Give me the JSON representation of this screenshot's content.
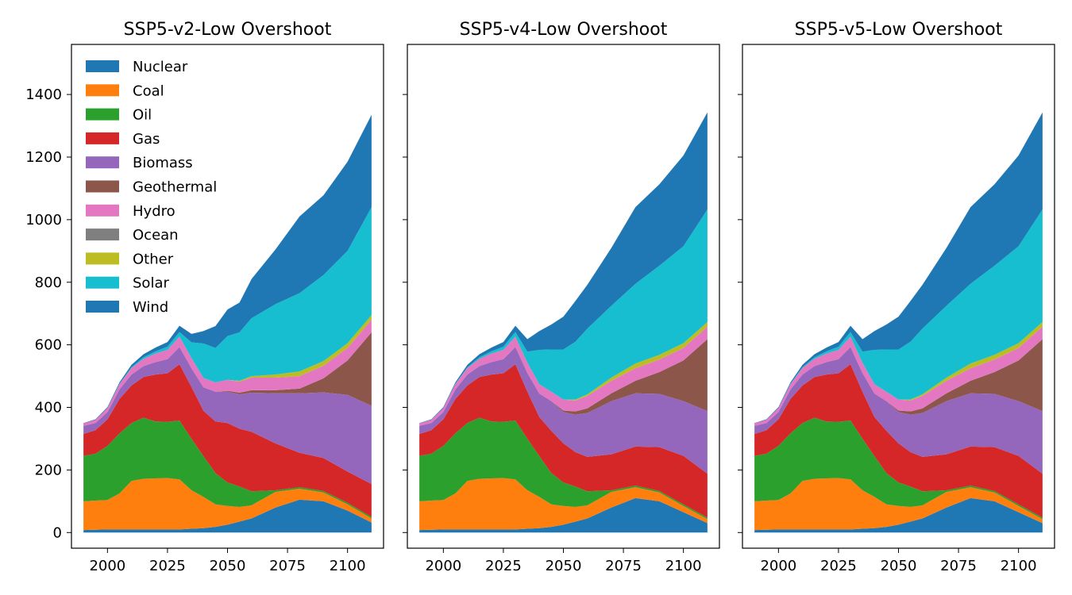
{
  "chart_data": {
    "type": "area",
    "stacked": true,
    "x": [
      1990,
      1995,
      2000,
      2005,
      2010,
      2015,
      2020,
      2025,
      2030,
      2035,
      2040,
      2045,
      2050,
      2055,
      2060,
      2070,
      2080,
      2090,
      2100,
      2110
    ],
    "ylim": [
      -50,
      1560
    ],
    "xlim": [
      1985,
      2115
    ],
    "yticks": [
      0,
      200,
      400,
      600,
      800,
      1000,
      1200,
      1400
    ],
    "xticks": [
      2000,
      2025,
      2050,
      2075,
      2100
    ],
    "legend": {
      "location": "upper-left",
      "panel": 0
    },
    "series_colors": {
      "Nuclear": "#1f77b4",
      "Coal": "#ff7f0e",
      "Oil": "#2ca02c",
      "Gas": "#d62728",
      "Biomass": "#9467bd",
      "Geothermal": "#8c564b",
      "Hydro": "#e377c2",
      "Ocean": "#7f7f7f",
      "Other": "#bcbd22",
      "Solar": "#17becf",
      "Wind": "#1f77b4"
    },
    "panels": [
      {
        "title": "SSP5-v2-Low Overshoot",
        "series": [
          {
            "name": "Nuclear",
            "values": [
              8,
              9,
              10,
              10,
              10,
              10,
              10,
              10,
              10,
              12,
              14,
              18,
              25,
              35,
              45,
              80,
              105,
              100,
              70,
              32
            ]
          },
          {
            "name": "Coal",
            "values": [
              92,
              93,
              94,
              115,
              155,
              162,
              163,
              164,
              160,
              123,
              100,
              72,
              60,
              47,
              42,
              50,
              35,
              28,
              20,
              13
            ]
          },
          {
            "name": "Oil",
            "values": [
              145,
              150,
              173,
              192,
              185,
              195,
              182,
              180,
              188,
              165,
              130,
              100,
              75,
              65,
              45,
              5,
              5,
              5,
              5,
              5
            ]
          },
          {
            "name": "Gas",
            "values": [
              70,
              75,
              85,
              110,
              120,
              130,
              150,
              155,
              180,
              165,
              145,
              165,
              190,
              185,
              190,
              150,
              110,
              105,
              100,
              105
            ]
          },
          {
            "name": "Biomass",
            "values": [
              26,
              23,
              23,
              30,
              35,
              35,
              40,
              45,
              55,
              60,
              75,
              95,
              100,
              110,
              125,
              160,
              190,
              210,
              245,
              250
            ]
          },
          {
            "name": "Geothermal",
            "values": [
              0,
              0,
              0,
              0,
              0,
              0,
              0,
              0,
              0,
              0,
              0,
              0,
              3,
              5,
              8,
              10,
              15,
              45,
              110,
              235
            ]
          },
          {
            "name": "Hydro",
            "values": [
              8,
              10,
              13,
              17,
              21,
              23,
              27,
              30,
              33,
              33,
              30,
              30,
              35,
              35,
              40,
              40,
              40,
              40,
              40,
              40
            ]
          },
          {
            "name": "Ocean",
            "values": [
              0,
              0,
              0,
              0,
              0,
              0,
              0,
              0,
              0,
              0,
              0,
              0,
              0,
              0,
              0,
              0,
              0,
              0,
              0,
              0
            ]
          },
          {
            "name": "Other",
            "values": [
              0,
              0,
              0,
              0,
              0,
              0,
              0,
              0,
              0,
              0,
              0,
              0,
              0,
              3,
              5,
              10,
              15,
              15,
              15,
              15
            ]
          },
          {
            "name": "Solar",
            "values": [
              0,
              0,
              0,
              1,
              2,
              5,
              7,
              10,
              15,
              50,
              110,
              110,
              140,
              155,
              185,
              225,
              250,
              275,
              295,
              345
            ]
          },
          {
            "name": "Wind",
            "values": [
              1,
              2,
              3,
              5,
              8,
              10,
              12,
              15,
              20,
              27,
              40,
              70,
              85,
              95,
              125,
              175,
              245,
              255,
              285,
              295
            ]
          }
        ]
      },
      {
        "title": "SSP5-v4-Low Overshoot",
        "series": [
          {
            "name": "Nuclear",
            "values": [
              8,
              9,
              10,
              10,
              10,
              10,
              10,
              10,
              10,
              12,
              14,
              18,
              25,
              35,
              45,
              80,
              110,
              100,
              65,
              30
            ]
          },
          {
            "name": "Coal",
            "values": [
              92,
              93,
              94,
              115,
              155,
              162,
              163,
              164,
              160,
              123,
              100,
              72,
              60,
              47,
              42,
              50,
              35,
              28,
              20,
              13
            ]
          },
          {
            "name": "Oil",
            "values": [
              145,
              150,
              173,
              192,
              185,
              195,
              182,
              180,
              188,
              165,
              130,
              100,
              75,
              65,
              45,
              5,
              5,
              5,
              5,
              5
            ]
          },
          {
            "name": "Gas",
            "values": [
              70,
              75,
              85,
              110,
              120,
              130,
              150,
              155,
              180,
              150,
              125,
              135,
              125,
              110,
              110,
              115,
              125,
              140,
              155,
              140
            ]
          },
          {
            "name": "Biomass",
            "values": [
              26,
              23,
              23,
              30,
              35,
              35,
              40,
              45,
              55,
              60,
              75,
              95,
              100,
              120,
              140,
              170,
              170,
              170,
              175,
              200
            ]
          },
          {
            "name": "Geothermal",
            "values": [
              0,
              0,
              0,
              0,
              0,
              0,
              0,
              0,
              0,
              0,
              0,
              0,
              5,
              10,
              15,
              25,
              40,
              70,
              130,
              230
            ]
          },
          {
            "name": "Hydro",
            "values": [
              8,
              10,
              13,
              17,
              21,
              23,
              27,
              30,
              33,
              33,
              30,
              30,
              35,
              35,
              40,
              40,
              40,
              40,
              40,
              40
            ]
          },
          {
            "name": "Ocean",
            "values": [
              0,
              0,
              0,
              0,
              0,
              0,
              0,
              0,
              0,
              0,
              0,
              0,
              0,
              0,
              0,
              0,
              0,
              0,
              0,
              0
            ]
          },
          {
            "name": "Other",
            "values": [
              0,
              0,
              0,
              0,
              0,
              0,
              0,
              0,
              0,
              0,
              0,
              0,
              0,
              3,
              5,
              10,
              15,
              15,
              15,
              15
            ]
          },
          {
            "name": "Solar",
            "values": [
              0,
              0,
              0,
              1,
              2,
              5,
              7,
              10,
              15,
              35,
              110,
              135,
              160,
              185,
              210,
              230,
              255,
              285,
              310,
              360
            ]
          },
          {
            "name": "Wind",
            "values": [
              1,
              2,
              3,
              5,
              8,
              10,
              12,
              15,
              20,
              40,
              60,
              80,
              105,
              130,
              140,
              185,
              245,
              260,
              290,
              310
            ]
          }
        ]
      },
      {
        "title": "SSP5-v5-Low Overshoot",
        "series": [
          {
            "name": "Nuclear",
            "values": [
              8,
              9,
              10,
              10,
              10,
              10,
              10,
              10,
              10,
              12,
              14,
              18,
              25,
              35,
              45,
              80,
              110,
              100,
              65,
              30
            ]
          },
          {
            "name": "Coal",
            "values": [
              92,
              93,
              94,
              115,
              155,
              162,
              163,
              164,
              160,
              123,
              100,
              72,
              60,
              47,
              42,
              50,
              35,
              28,
              20,
              13
            ]
          },
          {
            "name": "Oil",
            "values": [
              145,
              150,
              173,
              192,
              185,
              195,
              182,
              180,
              188,
              165,
              130,
              100,
              75,
              65,
              45,
              5,
              5,
              5,
              5,
              5
            ]
          },
          {
            "name": "Gas",
            "values": [
              70,
              75,
              85,
              110,
              120,
              130,
              150,
              155,
              180,
              150,
              125,
              135,
              125,
              110,
              110,
              115,
              125,
              140,
              155,
              140
            ]
          },
          {
            "name": "Biomass",
            "values": [
              26,
              23,
              23,
              30,
              35,
              35,
              40,
              45,
              55,
              60,
              75,
              95,
              100,
              120,
              140,
              170,
              170,
              170,
              175,
              200
            ]
          },
          {
            "name": "Geothermal",
            "values": [
              0,
              0,
              0,
              0,
              0,
              0,
              0,
              0,
              0,
              0,
              0,
              0,
              5,
              10,
              15,
              25,
              40,
              70,
              130,
              230
            ]
          },
          {
            "name": "Hydro",
            "values": [
              8,
              10,
              13,
              17,
              21,
              23,
              27,
              30,
              33,
              33,
              30,
              30,
              35,
              35,
              40,
              40,
              40,
              40,
              40,
              40
            ]
          },
          {
            "name": "Ocean",
            "values": [
              0,
              0,
              0,
              0,
              0,
              0,
              0,
              0,
              0,
              0,
              0,
              0,
              0,
              0,
              0,
              0,
              0,
              0,
              0,
              0
            ]
          },
          {
            "name": "Other",
            "values": [
              0,
              0,
              0,
              0,
              0,
              0,
              0,
              0,
              0,
              0,
              0,
              0,
              0,
              3,
              5,
              10,
              15,
              15,
              15,
              15
            ]
          },
          {
            "name": "Solar",
            "values": [
              0,
              0,
              0,
              1,
              2,
              5,
              7,
              10,
              15,
              35,
              110,
              135,
              160,
              185,
              210,
              230,
              255,
              285,
              310,
              360
            ]
          },
          {
            "name": "Wind",
            "values": [
              1,
              2,
              3,
              5,
              8,
              10,
              12,
              15,
              20,
              40,
              60,
              80,
              105,
              130,
              140,
              185,
              245,
              260,
              290,
              310
            ]
          }
        ]
      }
    ]
  }
}
